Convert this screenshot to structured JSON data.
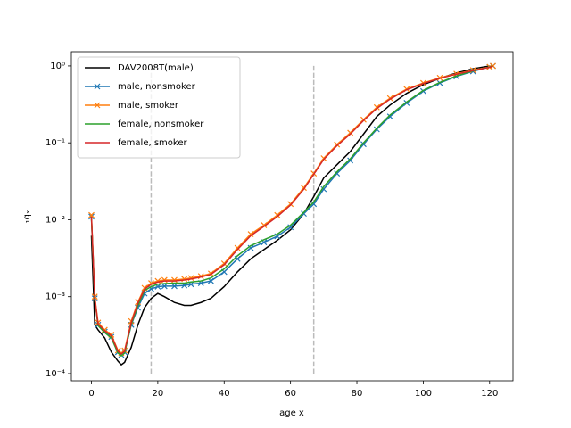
{
  "chart_data": {
    "type": "line",
    "xlabel": "age x",
    "ylabel": "₁qₓ",
    "yscale": "log",
    "x": [
      0,
      1,
      2,
      4,
      6,
      8,
      9,
      10,
      12,
      14,
      16,
      18,
      20,
      22,
      25,
      28,
      30,
      33,
      36,
      40,
      44,
      48,
      52,
      56,
      60,
      64,
      67,
      70,
      74,
      78,
      82,
      86,
      90,
      95,
      100,
      105,
      110,
      115,
      120,
      121
    ],
    "series": [
      {
        "name": "DAV2008T(male)",
        "color": "#000000",
        "marker": null,
        "values": [
          0.0062,
          0.00043,
          0.00037,
          0.00029,
          0.00019,
          0.000145,
          0.00013,
          0.00014,
          0.00022,
          0.00043,
          0.00072,
          0.00095,
          0.0011,
          0.001,
          0.00084,
          0.00077,
          0.00077,
          0.00084,
          0.00095,
          0.00135,
          0.0021,
          0.0031,
          0.0041,
          0.0054,
          0.0074,
          0.012,
          0.02,
          0.035,
          0.052,
          0.077,
          0.13,
          0.22,
          0.31,
          0.44,
          0.57,
          0.69,
          0.81,
          0.92,
          1.0,
          null
        ]
      },
      {
        "name": "male, nonsmoker",
        "color": "#1f77b4",
        "marker": "x",
        "values": [
          0.011,
          0.00095,
          0.00043,
          0.00035,
          0.0003,
          0.00019,
          0.000175,
          0.00019,
          0.00043,
          0.00072,
          0.0011,
          0.00126,
          0.00135,
          0.00137,
          0.00137,
          0.0014,
          0.00145,
          0.0015,
          0.0016,
          0.0021,
          0.0031,
          0.0043,
          0.0051,
          0.0061,
          0.008,
          0.012,
          0.016,
          0.025,
          0.04,
          0.059,
          0.096,
          0.15,
          0.22,
          0.33,
          0.47,
          0.6,
          0.73,
          0.85,
          0.97,
          1.0
        ]
      },
      {
        "name": "male, smoker",
        "color": "#ff7f0e",
        "marker": "x",
        "values": [
          0.0115,
          0.001,
          0.00046,
          0.00037,
          0.00032,
          0.0002,
          0.000185,
          0.0002,
          0.00048,
          0.00085,
          0.0013,
          0.0015,
          0.0016,
          0.00165,
          0.00165,
          0.0017,
          0.00175,
          0.00185,
          0.002,
          0.0027,
          0.0043,
          0.0065,
          0.0085,
          0.0115,
          0.016,
          0.026,
          0.04,
          0.063,
          0.095,
          0.135,
          0.2,
          0.29,
          0.38,
          0.5,
          0.6,
          0.7,
          0.79,
          0.88,
          0.97,
          1.0
        ]
      },
      {
        "name": "female, nonsmoker",
        "color": "#2ca02c",
        "marker": null,
        "values": [
          0.0105,
          0.00092,
          0.00042,
          0.00034,
          0.00029,
          0.000185,
          0.00017,
          0.000185,
          0.00044,
          0.00076,
          0.0012,
          0.00135,
          0.00145,
          0.00148,
          0.0015,
          0.0015,
          0.00155,
          0.0016,
          0.00175,
          0.0023,
          0.0034,
          0.0046,
          0.0055,
          0.0065,
          0.0085,
          0.0125,
          0.017,
          0.027,
          0.042,
          0.062,
          0.1,
          0.155,
          0.23,
          0.34,
          0.48,
          0.61,
          0.74,
          0.86,
          0.97,
          1.0
        ]
      },
      {
        "name": "female, smoker",
        "color": "#d62728",
        "marker": null,
        "values": [
          0.011,
          0.00096,
          0.00044,
          0.00036,
          0.00031,
          0.000195,
          0.00018,
          0.000195,
          0.00046,
          0.00082,
          0.00125,
          0.00145,
          0.00155,
          0.0016,
          0.0016,
          0.00165,
          0.0017,
          0.0018,
          0.00195,
          0.0026,
          0.0041,
          0.0062,
          0.0082,
          0.011,
          0.0155,
          0.025,
          0.039,
          0.061,
          0.092,
          0.13,
          0.195,
          0.28,
          0.37,
          0.49,
          0.59,
          0.69,
          0.78,
          0.87,
          0.96,
          0.99
        ]
      }
    ],
    "vlines": [
      {
        "x": 18,
        "ymin": 0.0001,
        "ymax": 1,
        "color": "#bbbbbb"
      },
      {
        "x": 67,
        "ymin": 0.0001,
        "ymax": 1,
        "color": "#bbbbbb"
      }
    ],
    "xlim": [
      -6.05,
      127.05
    ],
    "xticks": [
      0,
      20,
      40,
      60,
      80,
      100,
      120
    ],
    "ylim": [
      8.07e-05,
      1.53
    ],
    "yticks": [
      {
        "value": 0.0001,
        "label": "10⁻⁴"
      },
      {
        "value": 0.001,
        "label": "10⁻³"
      },
      {
        "value": 0.01,
        "label": "10⁻²"
      },
      {
        "value": 0.1,
        "label": "10⁻¹"
      },
      {
        "value": 1,
        "label": "10⁰"
      }
    ],
    "legend": "upper left"
  }
}
